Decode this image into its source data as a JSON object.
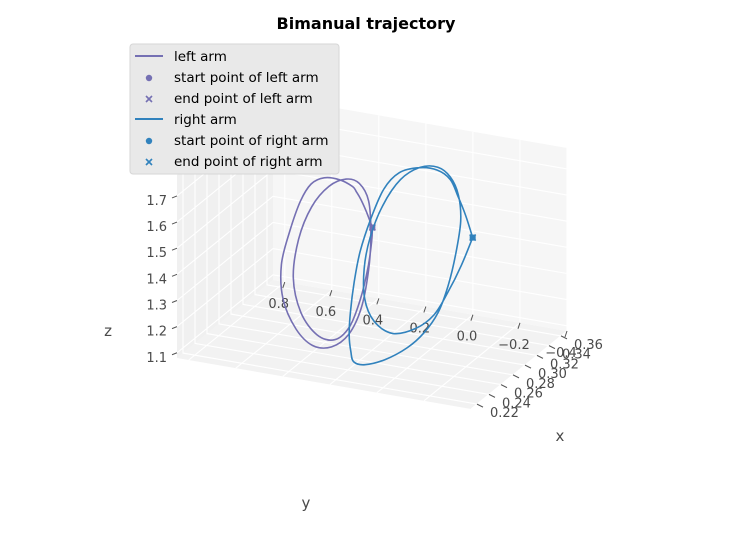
{
  "chart_data": {
    "type": "line",
    "projection": "3d",
    "title": "Bimanual trajectory",
    "xlabel": "x",
    "ylabel": "y",
    "zlabel": "z",
    "xlim": [
      0.21,
      0.37
    ],
    "ylim": [
      -0.4,
      0.85
    ],
    "zlim": [
      1.08,
      1.78
    ],
    "xticks": [
      0.22,
      0.24,
      0.26,
      0.28,
      0.3,
      0.32,
      0.34,
      0.36
    ],
    "xtick_labels": [
      "0.22",
      "0.24",
      "0.26",
      "0.28",
      "0.30",
      "0.32",
      "0.34",
      "0.36"
    ],
    "yticks": [
      0.8,
      0.6,
      0.4,
      0.2,
      0.0,
      -0.2,
      -0.4
    ],
    "ytick_labels": [
      "0.8",
      "0.6",
      "0.4",
      "0.2",
      "0.0",
      "−0.2",
      "−0.4"
    ],
    "zticks": [
      1.1,
      1.2,
      1.3,
      1.4,
      1.5,
      1.6,
      1.7
    ],
    "ztick_labels": [
      "1.1",
      "1.2",
      "1.3",
      "1.4",
      "1.5",
      "1.6",
      "1.7"
    ],
    "grid": true,
    "legend_position": "top-left",
    "legend": [
      {
        "label": "left arm",
        "marker": "line",
        "color": "#7570b3"
      },
      {
        "label": "start point of left arm",
        "marker": "circle",
        "color": "#7570b3"
      },
      {
        "label": "end point of left arm",
        "marker": "x",
        "color": "#7570b3"
      },
      {
        "label": "right arm",
        "marker": "line",
        "color": "#3182bd"
      },
      {
        "label": "start point of right arm",
        "marker": "circle",
        "color": "#3182bd"
      },
      {
        "label": "end point of right arm",
        "marker": "x",
        "color": "#3182bd"
      }
    ],
    "series": [
      {
        "name": "left arm",
        "color": "#7570b3",
        "start": {
          "x": 0.32,
          "y": 0.3,
          "z": 1.46
        },
        "end": {
          "x": 0.32,
          "y": 0.3,
          "z": 1.46
        },
        "points": [
          {
            "x": 0.32,
            "y": 0.3,
            "z": 1.46
          },
          {
            "x": 0.318,
            "y": 0.32,
            "z": 1.52
          },
          {
            "x": 0.312,
            "y": 0.33,
            "z": 1.58
          },
          {
            "x": 0.305,
            "y": 0.33,
            "z": 1.62
          },
          {
            "x": 0.295,
            "y": 0.32,
            "z": 1.66
          },
          {
            "x": 0.285,
            "y": 0.35,
            "z": 1.7
          },
          {
            "x": 0.275,
            "y": 0.39,
            "z": 1.72
          },
          {
            "x": 0.265,
            "y": 0.42,
            "z": 1.71
          },
          {
            "x": 0.255,
            "y": 0.44,
            "z": 1.66
          },
          {
            "x": 0.245,
            "y": 0.46,
            "z": 1.56
          },
          {
            "x": 0.235,
            "y": 0.47,
            "z": 1.45
          },
          {
            "x": 0.23,
            "y": 0.45,
            "z": 1.33
          },
          {
            "x": 0.232,
            "y": 0.4,
            "z": 1.22
          },
          {
            "x": 0.24,
            "y": 0.35,
            "z": 1.15
          },
          {
            "x": 0.252,
            "y": 0.3,
            "z": 1.13
          },
          {
            "x": 0.265,
            "y": 0.26,
            "z": 1.16
          },
          {
            "x": 0.278,
            "y": 0.24,
            "z": 1.24
          },
          {
            "x": 0.29,
            "y": 0.24,
            "z": 1.36
          },
          {
            "x": 0.298,
            "y": 0.25,
            "z": 1.48
          },
          {
            "x": 0.302,
            "y": 0.27,
            "z": 1.6
          },
          {
            "x": 0.298,
            "y": 0.3,
            "z": 1.67
          },
          {
            "x": 0.288,
            "y": 0.33,
            "z": 1.7
          },
          {
            "x": 0.275,
            "y": 0.37,
            "z": 1.69
          },
          {
            "x": 0.262,
            "y": 0.41,
            "z": 1.63
          },
          {
            "x": 0.252,
            "y": 0.44,
            "z": 1.52
          },
          {
            "x": 0.247,
            "y": 0.45,
            "z": 1.38
          },
          {
            "x": 0.248,
            "y": 0.42,
            "z": 1.25
          },
          {
            "x": 0.255,
            "y": 0.37,
            "z": 1.16
          },
          {
            "x": 0.265,
            "y": 0.32,
            "z": 1.13
          },
          {
            "x": 0.278,
            "y": 0.29,
            "z": 1.16
          },
          {
            "x": 0.292,
            "y": 0.28,
            "z": 1.24
          },
          {
            "x": 0.305,
            "y": 0.28,
            "z": 1.34
          },
          {
            "x": 0.315,
            "y": 0.29,
            "z": 1.42
          },
          {
            "x": 0.32,
            "y": 0.3,
            "z": 1.46
          }
        ]
      },
      {
        "name": "right arm",
        "color": "#3182bd",
        "start": {
          "x": 0.35,
          "y": -0.05,
          "z": 1.42
        },
        "end": {
          "x": 0.35,
          "y": -0.05,
          "z": 1.42
        },
        "points": [
          {
            "x": 0.35,
            "y": -0.05,
            "z": 1.42
          },
          {
            "x": 0.35,
            "y": -0.02,
            "z": 1.5
          },
          {
            "x": 0.345,
            "y": 0.0,
            "z": 1.58
          },
          {
            "x": 0.34,
            "y": 0.02,
            "z": 1.65
          },
          {
            "x": 0.33,
            "y": 0.05,
            "z": 1.7
          },
          {
            "x": 0.32,
            "y": 0.1,
            "z": 1.72
          },
          {
            "x": 0.31,
            "y": 0.16,
            "z": 1.71
          },
          {
            "x": 0.3,
            "y": 0.2,
            "z": 1.66
          },
          {
            "x": 0.29,
            "y": 0.23,
            "z": 1.56
          },
          {
            "x": 0.28,
            "y": 0.25,
            "z": 1.45
          },
          {
            "x": 0.27,
            "y": 0.25,
            "z": 1.35
          },
          {
            "x": 0.26,
            "y": 0.24,
            "z": 1.26
          },
          {
            "x": 0.25,
            "y": 0.22,
            "z": 1.19
          },
          {
            "x": 0.245,
            "y": 0.2,
            "z": 1.14
          },
          {
            "x": 0.242,
            "y": 0.18,
            "z": 1.11
          },
          {
            "x": 0.245,
            "y": 0.14,
            "z": 1.1
          },
          {
            "x": 0.255,
            "y": 0.08,
            "z": 1.11
          },
          {
            "x": 0.268,
            "y": 0.02,
            "z": 1.14
          },
          {
            "x": 0.28,
            "y": -0.02,
            "z": 1.18
          },
          {
            "x": 0.292,
            "y": -0.05,
            "z": 1.24
          },
          {
            "x": 0.305,
            "y": -0.06,
            "z": 1.32
          },
          {
            "x": 0.318,
            "y": -0.06,
            "z": 1.42
          },
          {
            "x": 0.33,
            "y": -0.05,
            "z": 1.52
          },
          {
            "x": 0.338,
            "y": -0.02,
            "z": 1.6
          },
          {
            "x": 0.34,
            "y": 0.02,
            "z": 1.66
          },
          {
            "x": 0.335,
            "y": 0.06,
            "z": 1.7
          },
          {
            "x": 0.325,
            "y": 0.11,
            "z": 1.71
          },
          {
            "x": 0.312,
            "y": 0.16,
            "z": 1.68
          },
          {
            "x": 0.298,
            "y": 0.2,
            "z": 1.6
          },
          {
            "x": 0.285,
            "y": 0.22,
            "z": 1.5
          },
          {
            "x": 0.275,
            "y": 0.22,
            "z": 1.4
          },
          {
            "x": 0.268,
            "y": 0.2,
            "z": 1.3
          },
          {
            "x": 0.268,
            "y": 0.16,
            "z": 1.22
          },
          {
            "x": 0.275,
            "y": 0.1,
            "z": 1.17
          },
          {
            "x": 0.29,
            "y": 0.04,
            "z": 1.17
          },
          {
            "x": 0.305,
            "y": 0.0,
            "z": 1.2
          },
          {
            "x": 0.32,
            "y": -0.02,
            "z": 1.26
          },
          {
            "x": 0.335,
            "y": -0.04,
            "z": 1.34
          },
          {
            "x": 0.35,
            "y": -0.05,
            "z": 1.42
          }
        ]
      }
    ]
  }
}
